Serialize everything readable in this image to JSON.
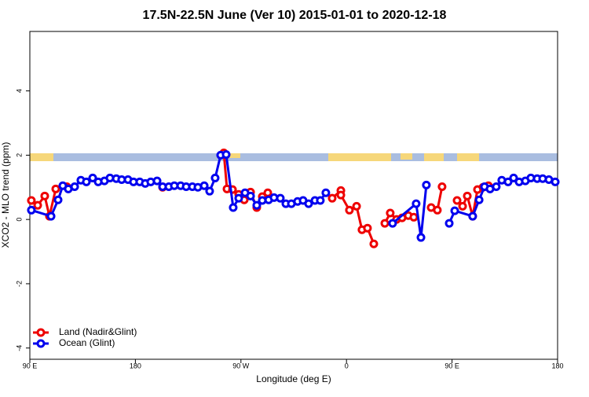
{
  "chart_data": {
    "type": "line",
    "title": "17.5N-22.5N June (Ver 10)   2015-01-01 to 2020-12-18",
    "x_label": "Longitude (deg E)",
    "y_label": "XCO2 - MLO trend (ppm)",
    "xlim": [
      90,
      540
    ],
    "xticks": [
      {
        "value": 90,
        "label": "90 E"
      },
      {
        "value": 180,
        "label": "180"
      },
      {
        "value": 270,
        "label": "90 W"
      },
      {
        "value": 360,
        "label": "0"
      },
      {
        "value": 450,
        "label": "90 E"
      },
      {
        "value": 540,
        "label": "180"
      }
    ],
    "ylim": [
      -4.35,
      5.85
    ],
    "yticks": [
      -4,
      -2,
      0,
      2,
      4
    ],
    "legend": "bottom-left",
    "series": [
      {
        "name": "Land (Nadir&Glint)",
        "color": "#ee0000",
        "x": [
          91.3,
          96.7,
          102.7,
          106.7,
          112.1,
          121.5,
          null,
          203.2,
          null,
          255.4,
          258.1,
          262.8,
          268.1,
          272.8,
          278.2,
          283.5,
          288.2,
          292.9,
          null,
          347.8,
          355.2,
          355.2,
          362.5,
          368.6,
          373.2,
          377.9,
          383.3,
          null,
          392.7,
          397.3,
          402.7,
          407.4,
          412.7,
          417.4,
          null,
          432.2,
          437.5,
          441.5,
          null,
          454.3,
          459.0,
          463.0,
          467.6,
          471.7,
          476.4,
          481.0
        ],
        "values": [
          0.59,
          0.44,
          0.73,
          0.1,
          0.95,
          1.02,
          null,
          1.0,
          null,
          2.07,
          0.95,
          0.93,
          0.78,
          0.61,
          0.85,
          0.37,
          0.71,
          0.83,
          null,
          0.66,
          0.9,
          0.76,
          0.29,
          0.41,
          -0.32,
          -0.27,
          -0.76,
          null,
          -0.12,
          0.2,
          0.0,
          0.05,
          0.12,
          0.07,
          null,
          0.37,
          0.29,
          1.02,
          null,
          0.59,
          0.41,
          0.73,
          0.1,
          0.93,
          1.0,
          1.05
        ]
      },
      {
        "name": "Ocean (Glint)",
        "color": "#0000ee",
        "x": [
          91.3,
          108.1,
          114.1,
          118.1,
          122.8,
          128.2,
          133.5,
          138.2,
          143.6,
          148.3,
          153.6,
          158.3,
          163.7,
          168.3,
          173.7,
          178.4,
          183.7,
          188.4,
          193.1,
          198.5,
          203.2,
          208.5,
          213.2,
          218.6,
          223.3,
          228.6,
          233.3,
          238.7,
          243.3,
          248.0,
          252.7,
          257.4,
          263.4,
          268.1,
          273.5,
          278.2,
          283.5,
          288.2,
          293.6,
          298.2,
          303.6,
          308.3,
          313.0,
          318.3,
          323.0,
          327.7,
          333.1,
          337.7,
          342.4,
          null,
          399.3,
          419.4,
          423.5,
          428.1,
          null,
          447.6,
          452.3,
          467.6,
          473.1,
          477.7,
          482.4,
          487.7,
          492.4,
          497.8,
          502.5,
          507.2,
          512.5,
          517.2,
          522.6,
          527.3,
          532.6,
          538.0
        ],
        "values": [
          0.29,
          0.1,
          0.61,
          1.05,
          0.95,
          1.02,
          1.22,
          1.17,
          1.29,
          1.17,
          1.2,
          1.29,
          1.27,
          1.24,
          1.24,
          1.17,
          1.17,
          1.12,
          1.17,
          1.2,
          1.02,
          1.02,
          1.05,
          1.05,
          1.02,
          1.02,
          1.0,
          1.05,
          0.88,
          1.29,
          2.0,
          2.02,
          0.37,
          0.66,
          0.83,
          0.73,
          0.44,
          0.59,
          0.61,
          0.68,
          0.66,
          0.49,
          0.49,
          0.56,
          0.59,
          0.49,
          0.59,
          0.59,
          0.83,
          null,
          -0.12,
          0.49,
          -0.56,
          1.07,
          null,
          -0.12,
          0.27,
          0.1,
          0.61,
          1.02,
          0.95,
          1.02,
          1.22,
          1.17,
          1.29,
          1.17,
          1.2,
          1.29,
          1.27,
          1.27,
          1.24,
          1.17
        ]
      }
    ]
  }
}
